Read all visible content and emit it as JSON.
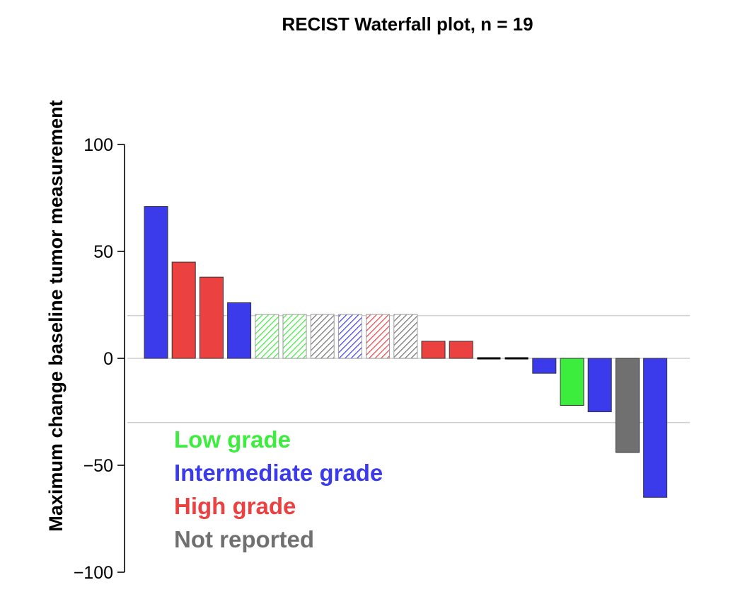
{
  "chart_data": {
    "type": "bar",
    "title": "RECIST Waterfall plot, n =  19",
    "xlabel": "",
    "ylabel": "Maximum change baseline tumor measurement",
    "ylim": [
      -100,
      100
    ],
    "yticks": [
      100,
      50,
      0,
      -50,
      -100
    ],
    "ytick_labels": [
      "100",
      "50",
      "0",
      "−50",
      "−100"
    ],
    "reference_lines": [
      20,
      0,
      -30
    ],
    "grid": false,
    "legend_position": "bottom-left",
    "colors": {
      "Low grade": "#3ded3d",
      "Intermediate grade": "#3b3bec",
      "High grade": "#ec4141",
      "Not reported": "#707070"
    },
    "legend": [
      {
        "label": "Low grade",
        "color": "#3ded3d"
      },
      {
        "label": "Intermediate grade",
        "color": "#3b3bec"
      },
      {
        "label": "High grade",
        "color": "#ec4141"
      },
      {
        "label": "Not reported",
        "color": "#707070"
      }
    ],
    "bars": [
      {
        "value": 71,
        "group": "Intermediate grade",
        "hatched": false
      },
      {
        "value": 45,
        "group": "High grade",
        "hatched": false
      },
      {
        "value": 38,
        "group": "High grade",
        "hatched": false
      },
      {
        "value": 26,
        "group": "Intermediate grade",
        "hatched": false
      },
      {
        "value": 20.5,
        "group": "Low grade",
        "hatched": true
      },
      {
        "value": 20.5,
        "group": "Low grade",
        "hatched": true
      },
      {
        "value": 20.5,
        "group": "Not reported",
        "hatched": true
      },
      {
        "value": 20.5,
        "group": "Intermediate grade",
        "hatched": true
      },
      {
        "value": 20.5,
        "group": "High grade",
        "hatched": true
      },
      {
        "value": 20.5,
        "group": "Not reported",
        "hatched": true
      },
      {
        "value": 8,
        "group": "High grade",
        "hatched": false
      },
      {
        "value": 8,
        "group": "High grade",
        "hatched": false
      },
      {
        "value": 0,
        "group": "Not reported",
        "hatched": false
      },
      {
        "value": 0,
        "group": "Not reported",
        "hatched": false
      },
      {
        "value": -7,
        "group": "Intermediate grade",
        "hatched": false
      },
      {
        "value": -22,
        "group": "Low grade",
        "hatched": false
      },
      {
        "value": -25,
        "group": "Intermediate grade",
        "hatched": false
      },
      {
        "value": -44,
        "group": "Not reported",
        "hatched": false
      },
      {
        "value": -65,
        "group": "Intermediate grade",
        "hatched": false
      }
    ]
  }
}
